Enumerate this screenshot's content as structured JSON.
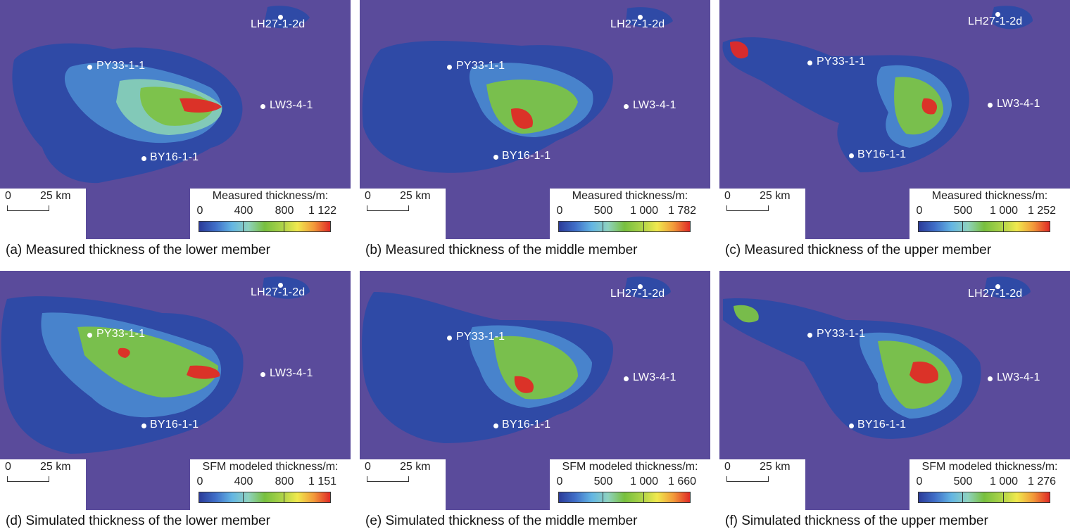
{
  "panels": [
    {
      "id": "a",
      "caption": "(a) Measured thickness of the lower member",
      "legend_title": "Measured thickness/m:",
      "ticks": [
        "0",
        "400",
        "800",
        "1 122"
      ]
    },
    {
      "id": "b",
      "caption": "(b) Measured thickness of the middle member",
      "legend_title": "Measured thickness/m:",
      "ticks": [
        "0",
        "500",
        "1 000",
        "1 782"
      ]
    },
    {
      "id": "c",
      "caption": "(c) Measured thickness of the upper member",
      "legend_title": "Measured thickness/m:",
      "ticks": [
        "0",
        "500",
        "1 000",
        "1 252"
      ]
    },
    {
      "id": "d",
      "caption": "(d) Simulated thickness of the lower member",
      "legend_title": "SFM modeled thickness/m:",
      "ticks": [
        "0",
        "400",
        "800",
        "1 151"
      ]
    },
    {
      "id": "e",
      "caption": "(e) Simulated thickness of the middle member",
      "legend_title": "SFM modeled thickness/m:",
      "ticks": [
        "0",
        "500",
        "1 000",
        "1 660"
      ]
    },
    {
      "id": "f",
      "caption": "(f) Simulated thickness of the upper member",
      "legend_title": "SFM modeled thickness/m:",
      "ticks": [
        "0",
        "500",
        "1 000",
        "1 276"
      ]
    }
  ],
  "wells": [
    "LH27-1-2d",
    "PY33-1-1",
    "LW3-4-1",
    "BY16-1-1"
  ],
  "scale_bar": {
    "zero": "0",
    "label": "25 km"
  },
  "colors": {
    "background": "#5a4b9b",
    "low": "#2b3b99",
    "mid": "#78c03f",
    "high": "#e02a26"
  }
}
